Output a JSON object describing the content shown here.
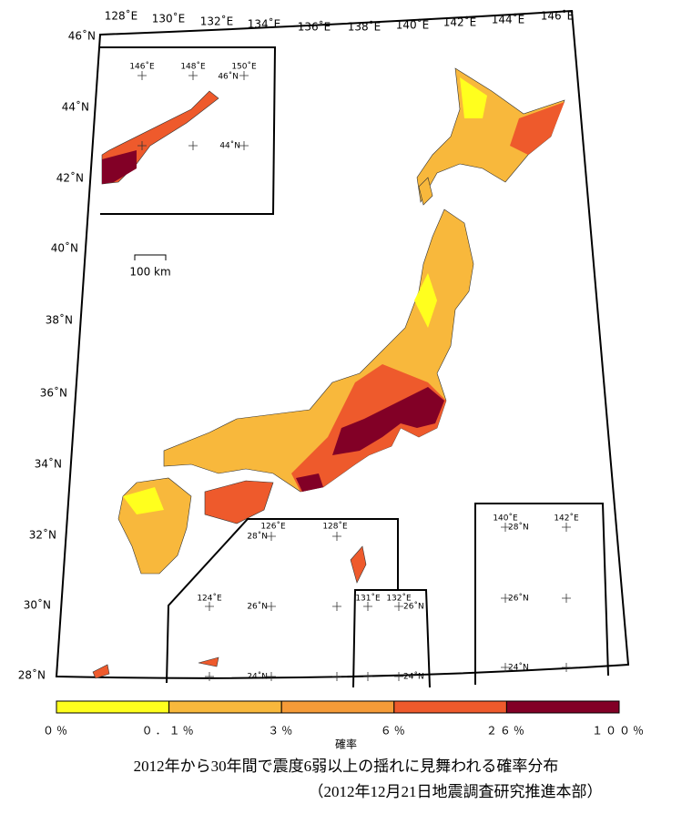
{
  "map": {
    "lon_labels": [
      "128˚E",
      "130˚E",
      "132˚E",
      "134˚E",
      "136˚E",
      "138˚E",
      "140˚E",
      "142˚E",
      "144˚E",
      "146˚E"
    ],
    "lat_labels": [
      "46˚N",
      "44˚N",
      "42˚N",
      "40˚N",
      "38˚N",
      "36˚N",
      "34˚N",
      "32˚N",
      "30˚N",
      "28˚N"
    ],
    "scale_bar": "100 km",
    "inset_north": {
      "lon_labels": [
        "146˚E",
        "148˚E",
        "150˚E"
      ],
      "lat_labels": [
        "46˚N",
        "44˚N"
      ]
    },
    "inset_south": {
      "lon_labels": [
        "126˚E",
        "128˚E",
        "124˚E",
        "131˚E",
        "132˚E"
      ],
      "lat_labels": [
        "28˚N",
        "26˚N",
        "24˚N",
        "26˚N",
        "24˚N"
      ]
    },
    "inset_east": {
      "lon_labels": [
        "140˚E",
        "142˚E"
      ],
      "lat_labels": [
        "28˚N",
        "26˚N",
        "24˚N"
      ]
    }
  },
  "legend": {
    "title": "確率",
    "colors": [
      "#ffff1e",
      "#f8b83c",
      "#f59b38",
      "#ee5a2c",
      "#820026"
    ],
    "labels": [
      "０％",
      "０．１％",
      "３％",
      "６％",
      "２６％",
      "１００％"
    ]
  },
  "caption": {
    "title": "2012年から30年間で震度6弱以上の揺れに見舞われる確率分布",
    "source": "（2012年12月21日地震調査研究推進本部）"
  }
}
